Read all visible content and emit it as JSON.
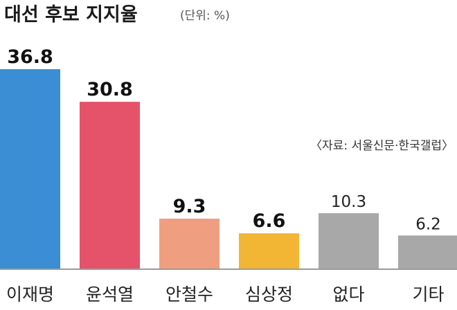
{
  "chart_data": {
    "type": "bar",
    "title": "대선 후보 지지율",
    "unit_note": "(단위: %)",
    "source": "〈자료: 서울신문·한국갤럽〉",
    "categories": [
      "이재명",
      "윤석열",
      "안철수",
      "심상정",
      "없다",
      "기타"
    ],
    "values": [
      36.8,
      30.8,
      9.3,
      6.6,
      10.3,
      6.2
    ],
    "value_labels": [
      "36.8",
      "30.8",
      "9.3",
      "6.6",
      "10.3",
      "6.2"
    ],
    "colors": [
      "#3b8ed4",
      "#e4536a",
      "#ef9f7f",
      "#f2b534",
      "#a8a8a8",
      "#a8a8a8"
    ],
    "bold_labels": [
      true,
      true,
      true,
      true,
      false,
      false
    ],
    "ylim": [
      0,
      36.8
    ],
    "grid": false,
    "baseline_color": "#9a9a9a"
  }
}
